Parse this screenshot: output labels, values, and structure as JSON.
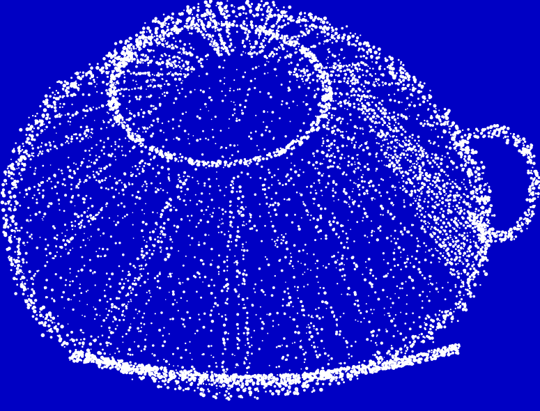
{
  "image": {
    "subject": "point-cloud-shell",
    "background_color": "#0000c4",
    "point_color": "#ffffff"
  }
}
